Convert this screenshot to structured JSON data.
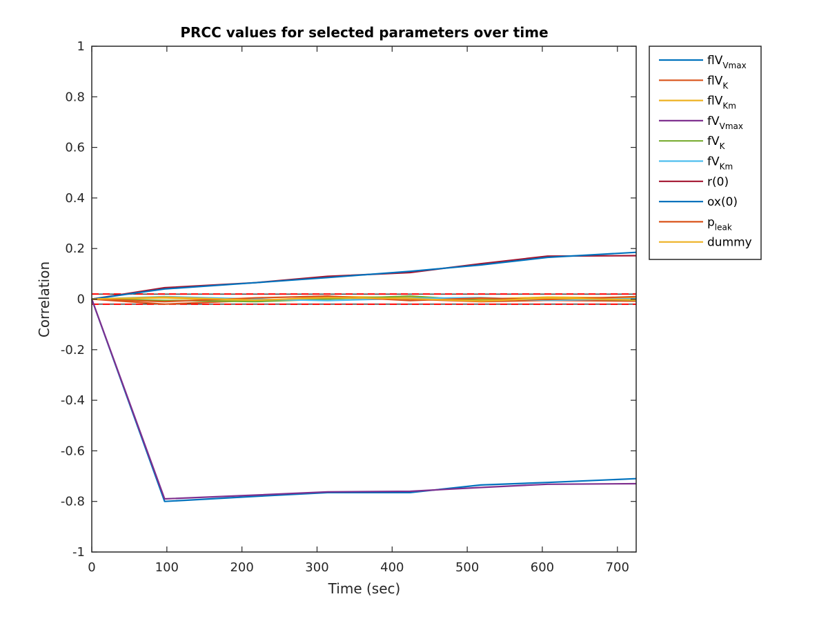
{
  "chart_data": {
    "type": "line",
    "title": "PRCC values for selected parameters over time",
    "xlabel": "Time (sec)",
    "ylabel": "Correlation",
    "xlim": [
      0,
      725
    ],
    "ylim": [
      -1,
      1
    ],
    "xticks": [
      0,
      100,
      200,
      300,
      400,
      500,
      600,
      700
    ],
    "yticks": [
      -1,
      -0.8,
      -0.6,
      -0.4,
      -0.2,
      0,
      0.2,
      0.4,
      0.6,
      0.8,
      1
    ],
    "ytick_labels": [
      "-1",
      "-0.8",
      "-0.6",
      "-0.4",
      "-0.2",
      "0",
      "0.2",
      "0.4",
      "0.6",
      "0.8",
      "1"
    ],
    "grid": false,
    "legend_position": "outside-top-right",
    "x": [
      0,
      97,
      218,
      314,
      424,
      518,
      607,
      725
    ],
    "series": [
      {
        "name_main": "flV",
        "name_sub": "Vmax",
        "color": "#0072BD",
        "values": [
          0,
          -0.8,
          -0.78,
          -0.765,
          -0.765,
          -0.735,
          -0.725,
          -0.71
        ]
      },
      {
        "name_main": "flV",
        "name_sub": "K",
        "color": "#D95319",
        "values": [
          0,
          -0.02,
          -0.005,
          0.005,
          0.0,
          -0.01,
          -0.005,
          -0.008
        ]
      },
      {
        "name_main": "flV",
        "name_sub": "Km",
        "color": "#EDB120",
        "values": [
          0,
          0.005,
          -0.008,
          0.01,
          0.006,
          0.0,
          0.008,
          0.004
        ]
      },
      {
        "name_main": "fV",
        "name_sub": "Vmax",
        "color": "#7E2F8E",
        "values": [
          0,
          -0.79,
          -0.775,
          -0.762,
          -0.76,
          -0.745,
          -0.732,
          -0.73
        ]
      },
      {
        "name_main": "fV",
        "name_sub": "K",
        "color": "#77AC30",
        "values": [
          0,
          -0.005,
          -0.01,
          0.0,
          0.012,
          -0.005,
          0.003,
          -0.004
        ]
      },
      {
        "name_main": "fV",
        "name_sub": "Km",
        "color": "#4DBEEE",
        "values": [
          0,
          0.01,
          0.0,
          -0.006,
          0.003,
          0.006,
          -0.005,
          0.002
        ]
      },
      {
        "name_main": "r(0)",
        "name_sub": "",
        "color": "#A2142F",
        "values": [
          0,
          0.045,
          0.065,
          0.09,
          0.105,
          0.14,
          0.17,
          0.172
        ]
      },
      {
        "name_main": "ox(0)",
        "name_sub": "",
        "color": "#0072BD",
        "values": [
          0,
          0.04,
          0.065,
          0.085,
          0.11,
          0.135,
          0.165,
          0.185
        ]
      },
      {
        "name_main": "p",
        "name_sub": "leak",
        "color": "#D95319",
        "values": [
          0,
          -0.01,
          0.005,
          0.012,
          -0.006,
          0.004,
          -0.002,
          0.01
        ]
      },
      {
        "name_main": "dummy",
        "name_sub": "",
        "color": "#EDB120",
        "values": [
          0,
          0.008,
          -0.004,
          0.006,
          0.002,
          -0.008,
          0.004,
          -0.003
        ]
      }
    ],
    "reference_lines": [
      {
        "y": 0.02,
        "color": "#000000"
      },
      {
        "y": -0.02,
        "color": "#000000"
      },
      {
        "y": 0.02,
        "color": "#FF0000",
        "dashed": true
      },
      {
        "y": -0.02,
        "color": "#FF0000",
        "dashed": true
      }
    ]
  }
}
